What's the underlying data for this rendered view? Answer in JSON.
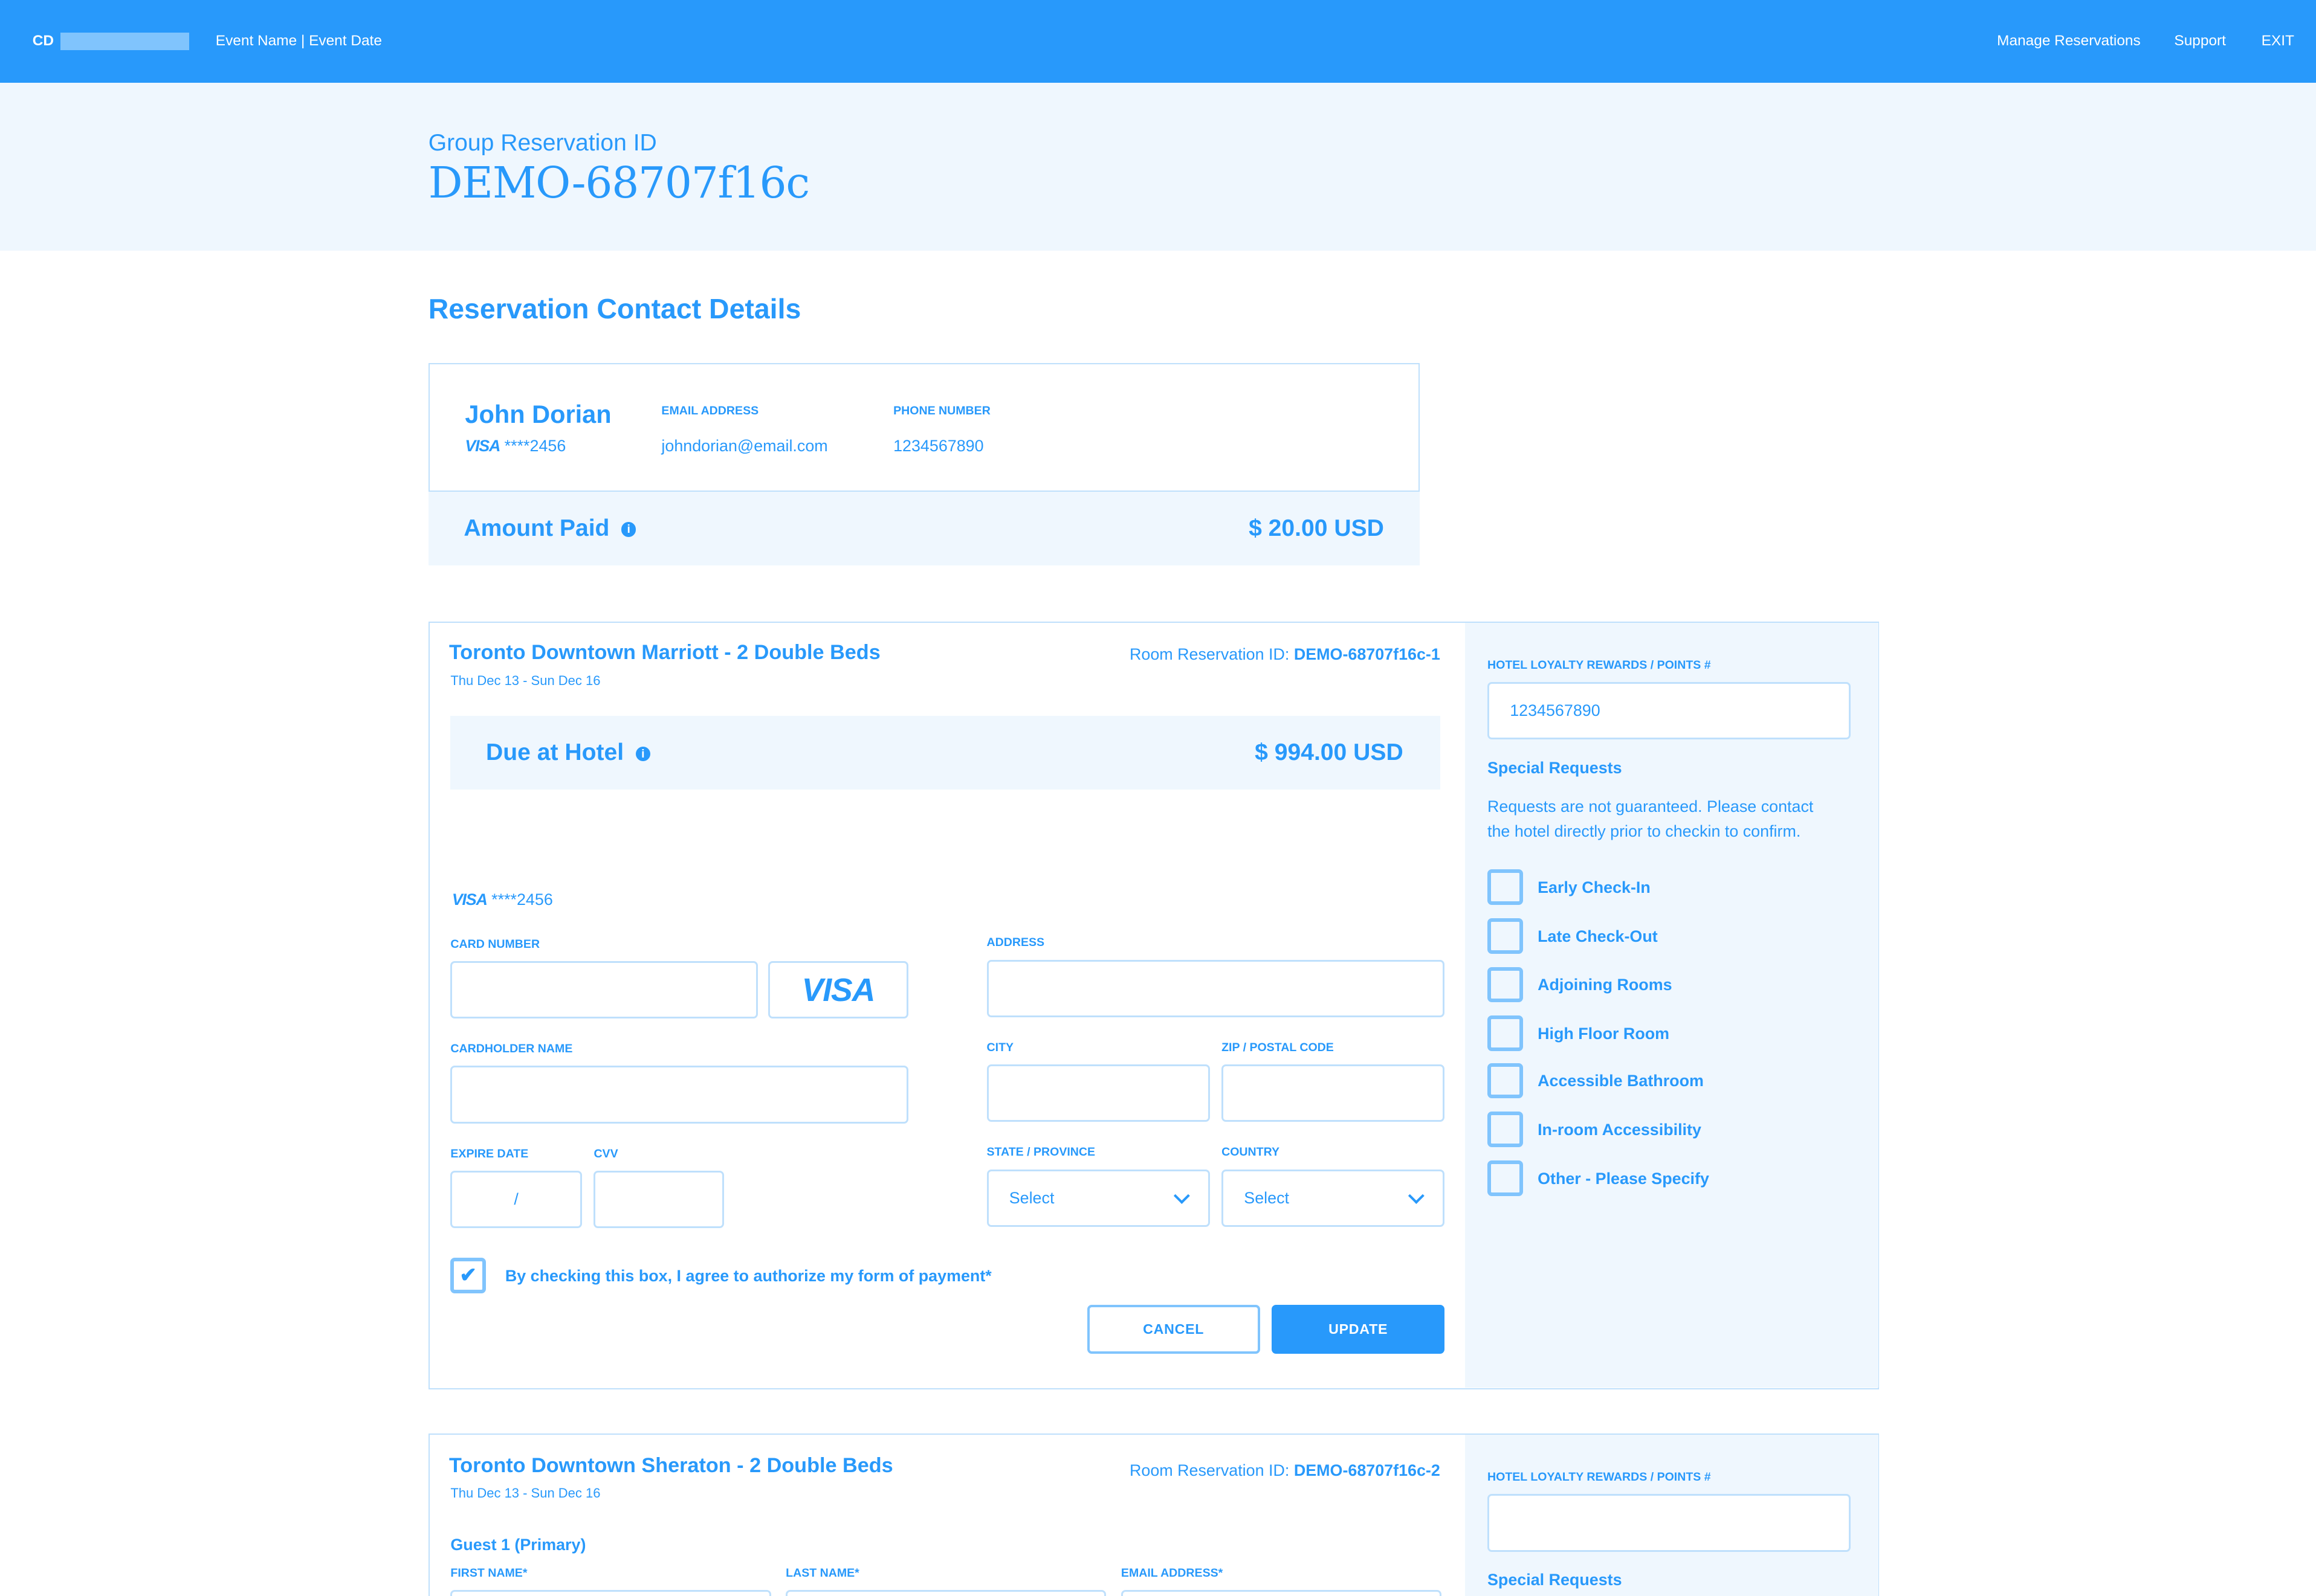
{
  "header": {
    "logo": "CD",
    "event": "Event Name | Event Date",
    "nav": [
      "Manage Reservations",
      "Support",
      "EXIT"
    ]
  },
  "banner": {
    "label": "Group Reservation ID",
    "id": "DEMO-68707f16c"
  },
  "contact": {
    "section_title": "Reservation Contact Details",
    "name": "John Dorian",
    "card_brand": "VISA",
    "card_masked": "****2456",
    "email_label": "EMAIL ADDRESS",
    "email": "johndorian@email.com",
    "phone_label": "PHONE NUMBER",
    "phone": "1234567890",
    "amount_label": "Amount Paid",
    "amount": "$ 20.00 USD"
  },
  "room1": {
    "title": "Toronto Downtown Marriott - 2 Double Beds",
    "dates": "Thu Dec 13 - Sun Dec 16",
    "rid_label": "Room Reservation ID: ",
    "rid": "DEMO-68707f16c-1",
    "due_label": "Due at Hotel",
    "due": "$ 994.00 USD",
    "card_brand": "VISA",
    "card_masked": "****2456",
    "form": {
      "card_number": "CARD NUMBER",
      "address": "ADDRESS",
      "cardholder": "CARDHOLDER NAME",
      "city": "CITY",
      "zip": "ZIP / POSTAL CODE",
      "expire": "EXPIRE DATE",
      "expire_sep": "/",
      "cvv": "CVV",
      "state": "STATE / PROVINCE",
      "country": "COUNTRY",
      "state_value": "Select",
      "country_value": "Select"
    },
    "authorize": "By checking this box, I agree to authorize my form of payment*",
    "authorize_checked": true,
    "cancel": "CANCEL",
    "update": "UPDATE",
    "loyalty_label": "HOTEL LOYALTY REWARDS / POINTS #",
    "loyalty_value": "1234567890",
    "special_title": "Special Requests",
    "special_note_1": "Requests are not guaranteed. Please contact",
    "special_note_2": "the hotel directly prior to checkin to confirm.",
    "requests": [
      "Early Check-In",
      "Late Check-Out",
      "Adjoining Rooms",
      "High Floor Room",
      "Accessible Bathroom",
      "In-room Accessibility",
      "Other - Please Specify"
    ]
  },
  "room2": {
    "title": "Toronto Downtown Sheraton - 2 Double Beds",
    "dates": "Thu Dec 13 - Sun Dec 16",
    "rid_label": "Room Reservation ID: ",
    "rid": "DEMO-68707f16c-2",
    "guest_title": "Guest 1 (Primary)",
    "first": "FIRST NAME*",
    "last": "LAST NAME*",
    "email": "EMAIL ADDRESS*",
    "loyalty_label": "HOTEL LOYALTY REWARDS / POINTS #",
    "special_title": "Special Requests"
  },
  "colors": {
    "accent": "#2899fb",
    "light_bg": "#eff7fe",
    "border": "#bfe0fc"
  }
}
